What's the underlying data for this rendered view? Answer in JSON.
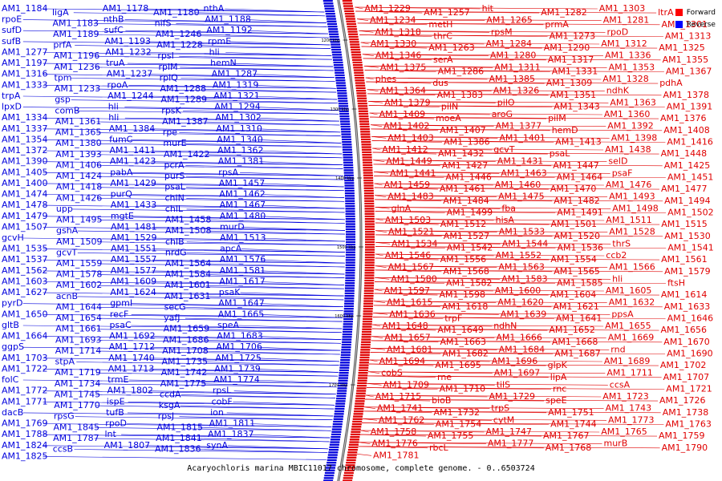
{
  "caption": "Acaryochloris marina MBIC11017 chromosome, complete genome. - 0..6503724",
  "legend": [
    {
      "label": "Forward",
      "color": "#ff0000"
    },
    {
      "label": "Reverse",
      "color": "#0000ff"
    }
  ],
  "ticks": [
    "1200 kbp",
    "1300 kbp",
    "1400 kbp",
    "1500 kbp",
    "1600 kbp",
    "1700 kbp"
  ],
  "colors": {
    "forward": "#e00000",
    "reverse": "#0000dd"
  },
  "left_labels": [
    "AM1_1184",
    "ligA",
    "AM1_1178",
    "AM1_1180",
    "nthA",
    "rpoE",
    "AM1_1183",
    "nthB",
    "nifS",
    "AM1_1188",
    "sufD",
    "AM1_1189",
    "sufC",
    "AM1_1246",
    "AM1_1192",
    "sufB",
    "prfA",
    "AM1_1193",
    "AM1_1228",
    "rpmE",
    "AM1_1277",
    "AM1_1196",
    "AM1_1232",
    "rpsI",
    "hli",
    "AM1_1197",
    "AM1_1236",
    "truA",
    "rplM",
    "hemN",
    "AM1_1316",
    "tpm",
    "AM1_1237",
    "rplQ",
    "AM1_1287",
    "AM1_1333",
    "AM1_1233",
    "rpoA",
    "AM1_1288",
    "AM1_1319",
    "trpA",
    "gsp",
    "AM1_1244",
    "AM1_1289",
    "AM1_1321",
    "lpxD",
    "comB",
    "hli",
    "rpsK",
    "AM1_1294",
    "AM1_1334",
    "AM1_1361",
    "hli",
    "AM1_1387",
    "AM1_1302",
    "AM1_1337",
    "AM1_1365",
    "AM1_1384",
    "rpe",
    "AM1_1310",
    "AM1_1354",
    "AM1_1380",
    "fumC",
    "murE",
    "AM1_1340",
    "AM1_1372",
    "AM1_1393",
    "AM1_1411",
    "AM1_1422",
    "AM1_1362",
    "AM1_1390",
    "AM1_1406",
    "AM1_1423",
    "pcrA",
    "AM1_1381",
    "AM1_1405",
    "AM1_1424",
    "pabA",
    "purS",
    "rpsA",
    "AM1_1400",
    "AM1_1418",
    "AM1_1429",
    "psaL",
    "AM1_1457",
    "AM1_1474",
    "AM1_1426",
    "purQ",
    "chlN",
    "AM1_1462",
    "AM1_1478",
    "upp",
    "AM1_1433",
    "chlL",
    "AM1_1467",
    "AM1_1479",
    "AM1_1495",
    "mgtE",
    "AM1_1458",
    "AM1_1480",
    "AM1_1507",
    "gshA",
    "AM1_1481",
    "AM1_1508",
    "murD",
    "gcvH",
    "AM1_1509",
    "AM1_1529",
    "chlB",
    "AM1_1513",
    "AM1_1535",
    "gcvT",
    "AM1_1551",
    "nrdG",
    "apcA",
    "AM1_1537",
    "AM1_1559",
    "AM1_1557",
    "AM1_1564",
    "AM1_1576",
    "AM1_1562",
    "AM1_1578",
    "AM1_1577",
    "AM1_1584",
    "AM1_1581",
    "AM1_1603",
    "AM1_1602",
    "AM1_1609",
    "AM1_1601",
    "AM1_1617",
    "AM1_1627",
    "acnB",
    "AM1_1624",
    "AM1_1631",
    "psaK",
    "pyrD",
    "AM1_1644",
    "gpmI",
    "secG",
    "AM1_1647",
    "AM1_1650",
    "AM1_1654",
    "recF",
    "yafJ",
    "AM1_1665",
    "gltB",
    "AM1_1661",
    "psaC",
    "AM1_1659",
    "speA",
    "AM1_1664",
    "AM1_1693",
    "AM1_1692",
    "AM1_1686",
    "AM1_1683",
    "ggpS",
    "AM1_1714",
    "AM1_1712",
    "AM1_1708",
    "AM1_1706",
    "AM1_1703",
    "stpA",
    "AM1_1740",
    "AM1_1735",
    "AM1_1725",
    "AM1_1722",
    "AM1_1719",
    "AM1_1713",
    "AM1_1742",
    "AM1_1739",
    "folC",
    "AM1_1734",
    "trmE",
    "AM1_1775",
    "AM1_1774",
    "AM1_1772",
    "AM1_1745",
    "AM1_1802",
    "ccdA",
    "rpsL",
    "AM1_1771",
    "AM1_1770",
    "ispE",
    "ksgA",
    "cobF",
    "dacB",
    "rpsG",
    "tufB",
    "rpsJ",
    "ion",
    "AM1_1769",
    "AM1_1845",
    "rpoD",
    "AM1_1815",
    "AM1_1811",
    "AM1_1788",
    "AM1_1787",
    "lnt",
    "AM1_1841",
    "AM1_1837",
    "AM1_1824",
    "ccsB",
    "AM1_1807",
    "AM1_1836",
    "synA",
    "AM1_1825"
  ],
  "right_labels": [
    "AM1_1229",
    "AM1_1257",
    "hit",
    "AM1_1282",
    "AM1_1303",
    "ltrA",
    "AM1_1234",
    "metH",
    "AM1_1265",
    "prmA",
    "AM1_1281",
    "AM1_1301",
    "AM1_1318",
    "thrC",
    "rpsM",
    "AM1_1273",
    "rpoD",
    "AM1_1313",
    "AM1_1330",
    "AM1_1263",
    "AM1_1284",
    "AM1_1290",
    "AM1_1312",
    "AM1_1325",
    "AM1_1346",
    "serA",
    "AM1_1280",
    "AM1_1317",
    "AM1_1336",
    "AM1_1355",
    "AM1_1375",
    "AM1_1286",
    "AM1_1311",
    "AM1_1331",
    "AM1_1353",
    "AM1_1367",
    "phes",
    "dus",
    "AM1_1385",
    "AM1_1309",
    "AM1_1328",
    "pdhA",
    "AM1_1364",
    "AM1_1383",
    "AM1_1326",
    "AM1_1351",
    "ndhK",
    "AM1_1378",
    "AM1_1379",
    "pilN",
    "pilO",
    "AM1_1343",
    "AM1_1363",
    "AM1_1391",
    "AM1_1409",
    "moeA",
    "aroG",
    "pilM",
    "AM1_1360",
    "AM1_1376",
    "AM1_1402",
    "AM1_1407",
    "AM1_1377",
    "hemD",
    "AM1_1392",
    "AM1_1408",
    "AM1_1403",
    "AM1_1386",
    "AM1_1401",
    "AM1_1413",
    "AM1_1398",
    "AM1_1416",
    "AM1_1412",
    "AM1_1432",
    "gcvT",
    "psaL",
    "AM1_1438",
    "AM1_1448",
    "AM1_1449",
    "AM1_1427",
    "AM1_1431",
    "AM1_1447",
    "selD",
    "AM1_1425",
    "AM1_1441",
    "AM1_1446",
    "AM1_1463",
    "AM1_1464",
    "psaF",
    "AM1_1451",
    "AM1_1459",
    "AM1_1461",
    "AM1_1460",
    "AM1_1470",
    "AM1_1476",
    "AM1_1477",
    "AM1_1483",
    "AM1_1484",
    "AM1_1475",
    "AM1_1482",
    "AM1_1493",
    "AM1_1494",
    "glnA",
    "AM1_1499",
    "fba",
    "AM1_1491",
    "AM1_1498",
    "AM1_1502",
    "AM1_1503",
    "AM1_1512",
    "hisA",
    "AM1_1501",
    "AM1_1511",
    "AM1_1515",
    "AM1_1521",
    "AM1_1527",
    "AM1_1533",
    "AM1_1520",
    "AM1_1528",
    "AM1_1530",
    "AM1_1534",
    "AM1_1542",
    "AM1_1544",
    "AM1_1536",
    "thrS",
    "AM1_1541",
    "AM1_1546",
    "AM1_1556",
    "AM1_1552",
    "AM1_1554",
    "ccb2",
    "AM1_1561",
    "AM1_1567",
    "AM1_1568",
    "AM1_1563",
    "AM1_1565",
    "AM1_1566",
    "AM1_1579",
    "AM1_1580",
    "AM1_1582",
    "AM1_1583",
    "AM1_1585",
    "hli",
    "ftsH",
    "AM1_1597",
    "AM1_1598",
    "AM1_1600",
    "AM1_1604",
    "AM1_1605",
    "AM1_1614",
    "AM1_1615",
    "AM1_1618",
    "AM1_1620",
    "AM1_1621",
    "AM1_1632",
    "AM1_1633",
    "AM1_1636",
    "trpF",
    "AM1_1639",
    "AM1_1641",
    "ppsA",
    "AM1_1646",
    "AM1_1648",
    "AM1_1649",
    "ndhN",
    "AM1_1652",
    "AM1_1655",
    "AM1_1656",
    "AM1_1657",
    "AM1_1663",
    "AM1_1666",
    "AM1_1668",
    "AM1_1669",
    "AM1_1670",
    "AM1_1681",
    "AM1_1682",
    "AM1_1684",
    "AM1_1687",
    "rnd",
    "AM1_1690",
    "AM1_1694",
    "AM1_1695",
    "AM1_1696",
    "glpK",
    "AM1_1689",
    "AM1_1702",
    "cobS",
    "rne",
    "AM1_1697",
    "lipA",
    "AM1_1711",
    "AM1_1707",
    "AM1_1709",
    "AM1_1710",
    "tilS",
    "rnc",
    "ccsA",
    "AM1_1721",
    "AM1_1715",
    "bioB",
    "AM1_1729",
    "speE",
    "AM1_1723",
    "AM1_1726",
    "AM1_1741",
    "AM1_1732",
    "trpS",
    "AM1_1751",
    "AM1_1743",
    "AM1_1738",
    "AM1_1762",
    "AM1_1754",
    "cytM",
    "AM1_1744",
    "AM1_1773",
    "AM1_1763",
    "AM1_1758",
    "AM1_1755",
    "AM1_1747",
    "AM1_1767",
    "AM1_1765",
    "AM1_1759",
    "AM1_1776",
    "rbcL",
    "AM1_1777",
    "AM1_1768",
    "murB",
    "AM1_1790",
    "AM1_1781"
  ]
}
